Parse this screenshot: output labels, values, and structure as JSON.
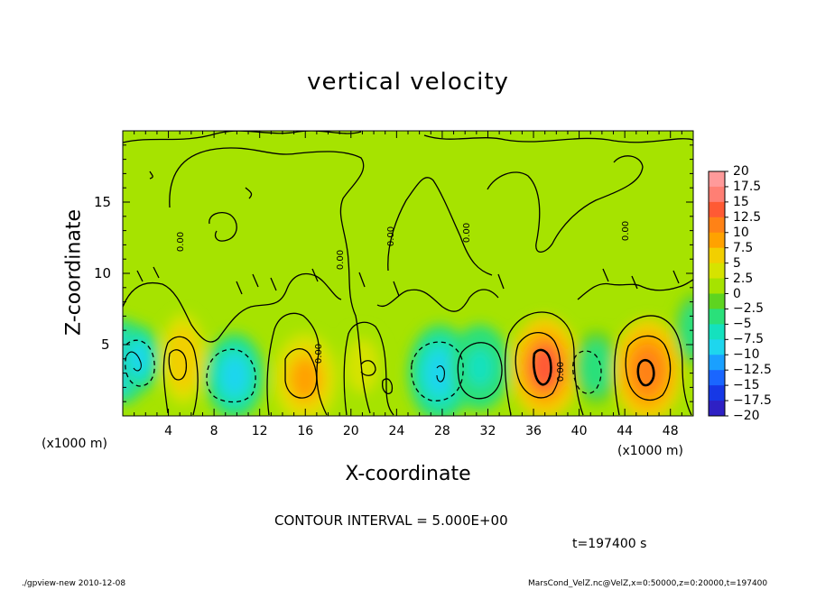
{
  "chart_data": {
    "type": "heatmap",
    "title": "vertical velocity",
    "xlabel": "X-coordinate",
    "ylabel": "Z-coordinate",
    "x_unit_label": "(x1000 m)",
    "xlim": [
      0,
      50
    ],
    "ylim": [
      0,
      20
    ],
    "x_ticks": [
      "4",
      "8",
      "12",
      "16",
      "20",
      "24",
      "28",
      "32",
      "36",
      "40",
      "44",
      "48"
    ],
    "y_ticks": [
      "5",
      "10",
      "15"
    ],
    "colorbar_labels": [
      "20",
      "17.5",
      "15",
      "12.5",
      "10",
      "7.5",
      "5",
      "2.5",
      "0",
      "-2.5",
      "-5",
      "-7.5",
      "-10",
      "-12.5",
      "-15",
      "-17.5",
      "-20"
    ],
    "colorbar_colors": [
      "#ff9a9a",
      "#ff7f74",
      "#ff5a34",
      "#ff8216",
      "#ffa200",
      "#f2cf00",
      "#d6e300",
      "#a6e300",
      "#5ed420",
      "#2ae07a",
      "#14e1be",
      "#1ed6ee",
      "#1aa0ff",
      "#1a66ff",
      "#1638e6",
      "#2e20c4",
      "#6a10a8"
    ],
    "background_value": 0.7,
    "cells": [
      {
        "x": 0.0,
        "z": 3.8,
        "w": -11,
        "rx": 2.4,
        "rz": 3.0
      },
      {
        "x": 1.4,
        "z": 4.0,
        "w": -9,
        "rx": 1.8,
        "rz": 2.4
      },
      {
        "x": 5.3,
        "z": 4.0,
        "w": 7,
        "rx": 2.0,
        "rz": 3.2
      },
      {
        "x": 9.8,
        "z": 2.8,
        "w": -8,
        "rx": 2.6,
        "rz": 3.0
      },
      {
        "x": 16.0,
        "z": 2.6,
        "w": 9,
        "rx": 2.8,
        "rz": 3.2
      },
      {
        "x": 21.0,
        "z": 3.5,
        "w": 4,
        "rx": 2.0,
        "rz": 2.6
      },
      {
        "x": 27.8,
        "z": 3.0,
        "w": -10,
        "rx": 2.8,
        "rz": 3.4
      },
      {
        "x": 31.3,
        "z": 3.4,
        "w": -6,
        "rx": 2.6,
        "rz": 3.0
      },
      {
        "x": 37.0,
        "z": 3.4,
        "w": 13,
        "rx": 3.0,
        "rz": 3.6
      },
      {
        "x": 41.5,
        "z": 3.4,
        "w": -5,
        "rx": 2.0,
        "rz": 2.6
      },
      {
        "x": 46.0,
        "z": 3.2,
        "w": 12,
        "rx": 3.0,
        "rz": 3.6
      },
      {
        "x": 50.0,
        "z": 6.0,
        "w": -4,
        "rx": 1.6,
        "rz": 2.6
      }
    ]
  },
  "labels": {
    "x_unit_left": "(x1000 m)",
    "x_unit_right": "(x1000 m)",
    "contour_interval": "CONTOUR INTERVAL = 5.000E+00",
    "time": "t=197400 s",
    "footer_left": "./gpview-new   2010-12-08",
    "footer_right": "MarsCond_VelZ.nc@VelZ,x=0:50000,z=0:20000,t=197400"
  },
  "contour_labels": [
    "0.00",
    "0.00",
    "0.00",
    "0.00",
    "0.00",
    "0.00",
    "0.00"
  ]
}
